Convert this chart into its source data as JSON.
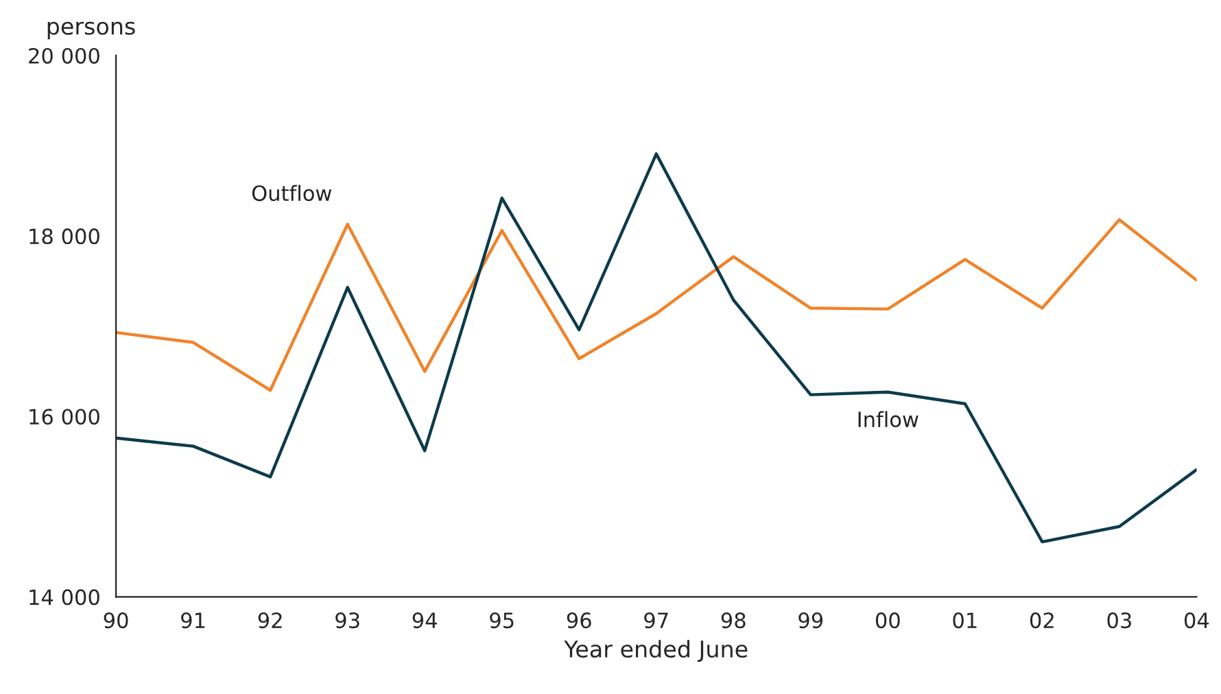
{
  "chart_data": {
    "type": "line",
    "ylabel": "persons",
    "xlabel": "Year ended June",
    "categories": [
      "90",
      "91",
      "92",
      "93",
      "94",
      "95",
      "96",
      "97",
      "98",
      "99",
      "00",
      "01",
      "02",
      "03",
      "04"
    ],
    "series": [
      {
        "name": "Outflow",
        "color": "#f0832a",
        "values": [
          16930,
          16820,
          16290,
          18130,
          16500,
          18060,
          16640,
          17140,
          17770,
          17200,
          17190,
          17740,
          17200,
          18180,
          17510
        ]
      },
      {
        "name": "Inflow",
        "color": "#0d3b4c",
        "values": [
          15760,
          15670,
          15330,
          17430,
          15620,
          18420,
          16960,
          18910,
          17290,
          16240,
          16270,
          16140,
          14610,
          14780,
          15410
        ]
      }
    ],
    "ylim": [
      14000,
      20000
    ],
    "yticks": [
      {
        "value": 14000,
        "label": "14 000"
      },
      {
        "value": 16000,
        "label": "16 000"
      },
      {
        "value": 18000,
        "label": "18 000"
      },
      {
        "value": 20000,
        "label": "20 000"
      }
    ],
    "grid": false,
    "legend": false,
    "marker": "none",
    "line_style": "solid"
  }
}
